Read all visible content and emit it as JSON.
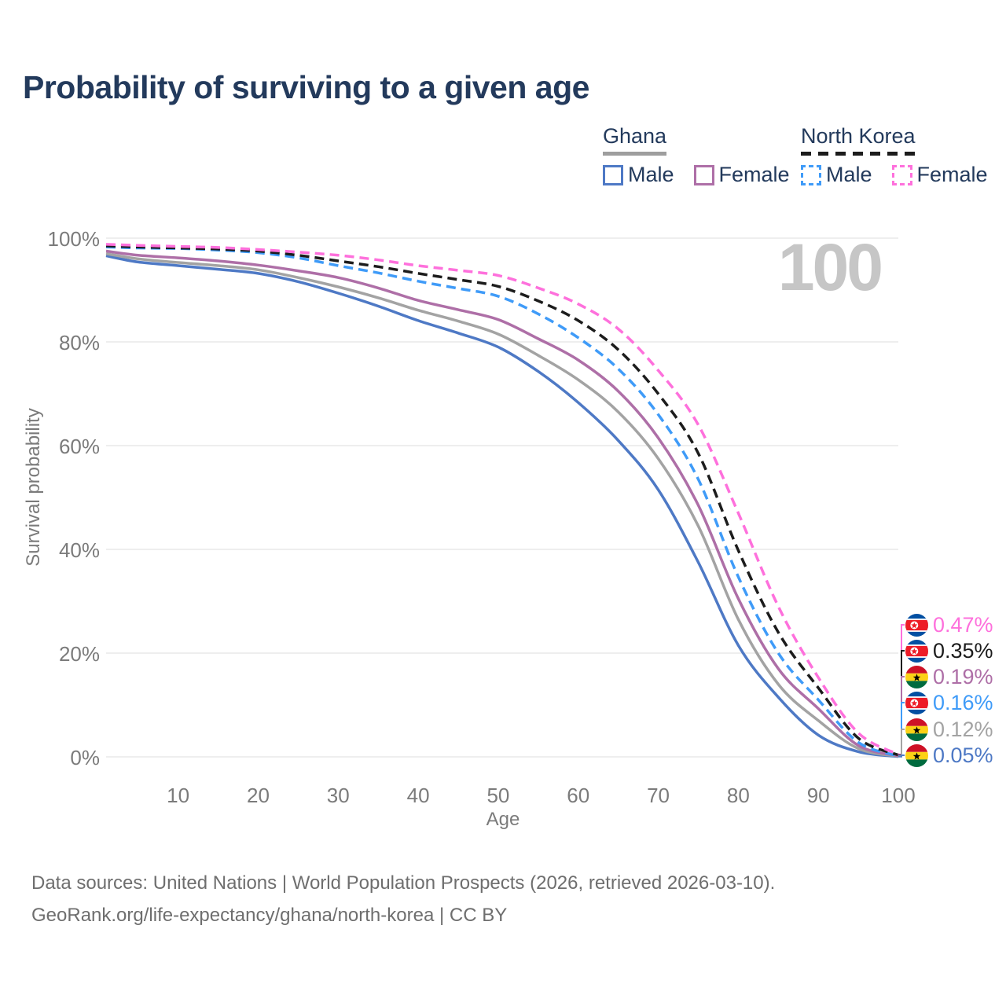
{
  "title": "Probability of surviving to a given age",
  "watermark": "100",
  "legend": {
    "groups": [
      {
        "label": "Ghana",
        "line_style": "solid",
        "underline_color": "#9e9e9e",
        "items": [
          {
            "label": "Male",
            "color": "#4e79c5",
            "dashed": false
          },
          {
            "label": "Female",
            "color": "#ae6fa7",
            "dashed": false
          }
        ]
      },
      {
        "label": "North Korea",
        "line_style": "dashed",
        "underline_color": "#1c1c1c",
        "items": [
          {
            "label": "Male",
            "color": "#3f9bf8",
            "dashed": true
          },
          {
            "label": "Female",
            "color": "#fe70dc",
            "dashed": true
          }
        ]
      }
    ]
  },
  "chart_data": {
    "type": "line",
    "title": "Probability of surviving to a given age",
    "xlabel": "Age",
    "ylabel": "Survival probability",
    "xlim": [
      1,
      100
    ],
    "ylim": [
      0,
      100
    ],
    "grid": "horizontal",
    "x_ticks": [
      10,
      20,
      30,
      40,
      50,
      60,
      70,
      80,
      90,
      100
    ],
    "y_ticks": [
      {
        "label": "0%",
        "value": 0
      },
      {
        "label": "20%",
        "value": 20
      },
      {
        "label": "40%",
        "value": 40
      },
      {
        "label": "60%",
        "value": 60
      },
      {
        "label": "80%",
        "value": 80
      },
      {
        "label": "100%",
        "value": 100
      }
    ],
    "x": [
      1,
      5,
      10,
      15,
      20,
      25,
      30,
      35,
      40,
      45,
      50,
      55,
      60,
      65,
      70,
      75,
      80,
      85,
      90,
      95,
      100
    ],
    "series": [
      {
        "name": "Ghana Male",
        "country": "Ghana",
        "sex": "Male",
        "color": "#4e79c5",
        "dashed": false,
        "values": [
          96.6,
          95.4,
          94.7,
          94.0,
          93.2,
          91.6,
          89.4,
          86.9,
          84.1,
          81.7,
          79.0,
          74.3,
          68.3,
          61.0,
          51.5,
          37.5,
          21.5,
          11.5,
          4.2,
          1.0,
          0.05
        ]
      },
      {
        "name": "Ghana",
        "country": "Ghana",
        "sex": "Both sexes",
        "color": "#a3a3a3",
        "dashed": false,
        "values": [
          97.0,
          96.0,
          95.3,
          94.7,
          93.9,
          92.4,
          90.6,
          88.5,
          86.1,
          84.0,
          81.5,
          77.4,
          72.7,
          66.5,
          57.5,
          44.5,
          26.5,
          14.0,
          7.0,
          1.6,
          0.12
        ]
      },
      {
        "name": "Ghana Female",
        "country": "Ghana",
        "sex": "Female",
        "color": "#ae6fa7",
        "dashed": false,
        "values": [
          97.5,
          96.7,
          96.2,
          95.6,
          94.8,
          93.7,
          92.4,
          90.4,
          88.0,
          86.2,
          84.3,
          80.6,
          76.5,
          70.5,
          61.5,
          48.5,
          30.5,
          17.0,
          9.3,
          2.2,
          0.19
        ]
      },
      {
        "name": "North Korea Male",
        "country": "North Korea",
        "sex": "Male",
        "color": "#3f9bf8",
        "dashed": true,
        "values": [
          98.3,
          98.1,
          98.0,
          97.7,
          97.2,
          96.2,
          94.7,
          93.3,
          91.7,
          90.3,
          88.8,
          85.4,
          80.8,
          74.8,
          66.0,
          53.5,
          34.7,
          20.0,
          11.0,
          2.8,
          0.16
        ]
      },
      {
        "name": "North Korea",
        "country": "North Korea",
        "sex": "Both sexes",
        "color": "#1c1c1c",
        "dashed": true,
        "values": [
          98.5,
          98.3,
          98.1,
          97.9,
          97.5,
          96.7,
          95.6,
          94.5,
          93.2,
          92.0,
          90.7,
          87.9,
          84.1,
          78.5,
          70.0,
          58.5,
          39.8,
          24.0,
          13.3,
          3.6,
          0.35
        ]
      },
      {
        "name": "North Korea Female",
        "country": "North Korea",
        "sex": "Female",
        "color": "#fe70dc",
        "dashed": true,
        "values": [
          98.8,
          98.6,
          98.4,
          98.2,
          97.8,
          97.3,
          96.7,
          95.8,
          94.7,
          93.8,
          92.8,
          90.4,
          87.3,
          82.5,
          74.5,
          64.0,
          47.0,
          29.0,
          15.3,
          4.6,
          0.47
        ]
      }
    ]
  },
  "end_labels": [
    {
      "text": "0.47%",
      "value_pct": 0.47,
      "color": "#fe70dc",
      "series": "North Korea Female",
      "flag": "north-korea-flag-icon"
    },
    {
      "text": "0.35%",
      "value_pct": 0.35,
      "color": "#1c1c1c",
      "series": "North Korea",
      "flag": "north-korea-flag-icon"
    },
    {
      "text": "0.19%",
      "value_pct": 0.19,
      "color": "#ae6fa7",
      "series": "Ghana Female",
      "flag": "ghana-flag-icon"
    },
    {
      "text": "0.16%",
      "value_pct": 0.16,
      "color": "#3f9bf8",
      "series": "North Korea Male",
      "flag": "north-korea-flag-icon"
    },
    {
      "text": "0.12%",
      "value_pct": 0.12,
      "color": "#a3a3a3",
      "series": "Ghana",
      "flag": "ghana-flag-icon"
    },
    {
      "text": "0.05%",
      "value_pct": 0.05,
      "color": "#4e79c5",
      "series": "Ghana Male",
      "flag": "ghana-flag-icon"
    }
  ],
  "flags": {
    "north_korea": {
      "blue": "#024FA2",
      "white": "#FFFFFF",
      "red": "#ED1C27"
    },
    "ghana": {
      "red": "#CE1126",
      "gold": "#FCD116",
      "green": "#006B3F",
      "black": "#000000"
    }
  },
  "colors": {
    "title": "#233a5c",
    "axis_text": "#7b7b7b",
    "gridline": "#e9e9e9",
    "watermark": "#c6c6c6",
    "footer_text": "#6e6e6e"
  },
  "footer": {
    "line1": "Data sources: United Nations | World Population Prospects (2026, retrieved 2026-03-10).",
    "line2": "GeoRank.org/life-expectancy/ghana/north-korea | CC BY"
  }
}
